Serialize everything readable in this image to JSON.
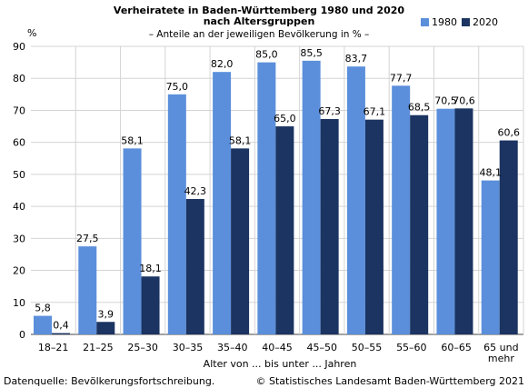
{
  "chart_data": {
    "type": "bar",
    "title_lines": [
      "Verheiratete in Baden-Württemberg 1980 und 2020",
      "nach Altersgruppen"
    ],
    "subtitle": "– Anteile an der jeweiligen Bevölkerung in % –",
    "ylabel": "%",
    "xlabel": "Alter von ... bis unter ... Jahren",
    "ylim": [
      0,
      90
    ],
    "yticks": [
      0,
      10,
      20,
      30,
      40,
      50,
      60,
      70,
      80,
      90
    ],
    "grid": true,
    "legend_position": "top-right",
    "categories": [
      "18–21",
      "21–25",
      "25–30",
      "30–35",
      "35–40",
      "40–45",
      "45–50",
      "50–55",
      "55–60",
      "60–65",
      "65 und mehr"
    ],
    "series": [
      {
        "name": "1980",
        "color": "#5b8fdb",
        "values": [
          5.8,
          27.5,
          58.1,
          75.0,
          82.0,
          85.0,
          85.5,
          83.7,
          77.7,
          70.5,
          48.1
        ],
        "labels": [
          "5,8",
          "27,5",
          "58,1",
          "75,0",
          "82,0",
          "85,0",
          "85,5",
          "83,7",
          "77,7",
          "70,5",
          "48,1"
        ]
      },
      {
        "name": "2020",
        "color": "#1b3461",
        "values": [
          0.4,
          3.9,
          18.1,
          42.3,
          58.1,
          65.0,
          67.3,
          67.1,
          68.5,
          70.6,
          60.6
        ],
        "labels": [
          "0,4",
          "3,9",
          "18,1",
          "42,3",
          "58,1",
          "65,0",
          "67,3",
          "67,1",
          "68,5",
          "70,6",
          "60,6"
        ]
      }
    ]
  },
  "footer": {
    "source": "Datenquelle: Bevölkerungsfortschreibung.",
    "copyright": "© Statistisches Landesamt Baden-Württemberg 2021"
  }
}
